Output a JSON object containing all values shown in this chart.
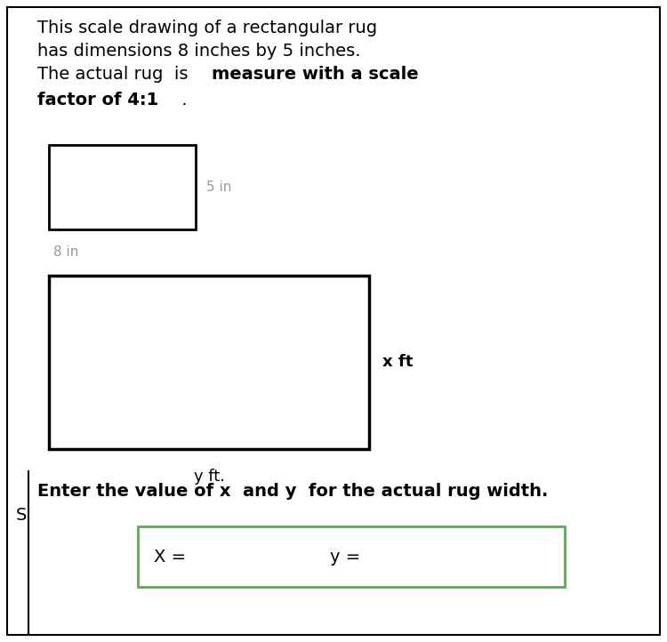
{
  "background_color": "#ffffff",
  "border_color": "#000000",
  "title_line1": "This scale drawing of a rectangular rug",
  "title_line2": "has dimensions 8 inches by 5 inches.",
  "title_line3_normal": "The actual rug  is  ",
  "title_line3_bold": "measure with a scale",
  "title_line4_bold": "factor of 4:1",
  "title_line4_dot": " .",
  "small_rect_label_right": "5 in",
  "small_rect_label_below": "8 in",
  "large_rect_label_right": "x ft",
  "large_rect_label_below": "y ft.",
  "answer_box_label": "Enter the value of x  and y  for the actual rug width.",
  "answer_box_color": "#5aaa5a",
  "x_label": "X =",
  "y_label": "y =",
  "left_s_char": "S",
  "font_size_title": 14,
  "font_size_small_labels": 11,
  "font_size_large_labels": 13,
  "font_size_answer": 14,
  "gray_color": "#999999"
}
